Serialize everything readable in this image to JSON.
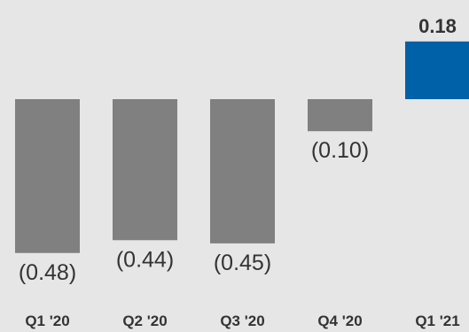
{
  "chart_data": {
    "type": "bar",
    "categories": [
      "Q1 '20",
      "Q2 '20",
      "Q3 '20",
      "Q4 '20",
      "Q1 '21"
    ],
    "values": [
      -0.48,
      -0.44,
      -0.45,
      -0.1,
      0.18
    ],
    "data_labels": [
      "(0.48)",
      "(0.44)",
      "(0.45)",
      "(0.10)",
      "0.18"
    ],
    "title": "",
    "xlabel": "",
    "ylabel": "",
    "ylim": [
      -0.5,
      0.2
    ],
    "grid": false,
    "legend": "none",
    "colors": {
      "negative": "#808080",
      "positive": "#0060a8",
      "background": "#e6e6e6",
      "text": "#333333"
    }
  }
}
